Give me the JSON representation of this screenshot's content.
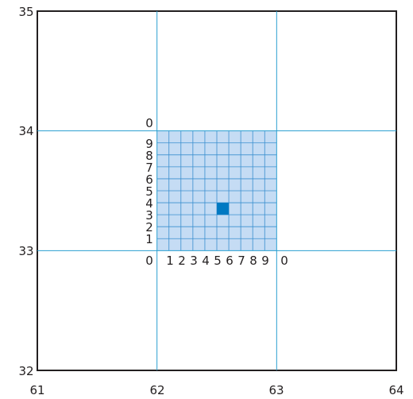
{
  "colors": {
    "frame": "#231f20",
    "gridline": "#2a9fd0",
    "cell_fill": "#c5dcf4",
    "cell_line": "#3a8fcf",
    "highlight": "#0079c2",
    "text": "#231f20"
  },
  "outer_grid": {
    "x_tick_labels": [
      "61",
      "62",
      "63",
      "64"
    ],
    "y_tick_labels": [
      "32",
      "33",
      "34",
      "35"
    ],
    "x_range": [
      61,
      64
    ],
    "y_range": [
      32,
      35
    ]
  },
  "inner_grid": {
    "x_labels": [
      "0",
      "1",
      "2",
      "3",
      "4",
      "5",
      "6",
      "7",
      "8",
      "9",
      "0"
    ],
    "y_labels": [
      "0",
      "1",
      "2",
      "3",
      "4",
      "5",
      "6",
      "7",
      "8",
      "9",
      "0"
    ],
    "divisions": 10,
    "highlighted_cell": {
      "x_index": 5,
      "y_index": 3
    }
  }
}
